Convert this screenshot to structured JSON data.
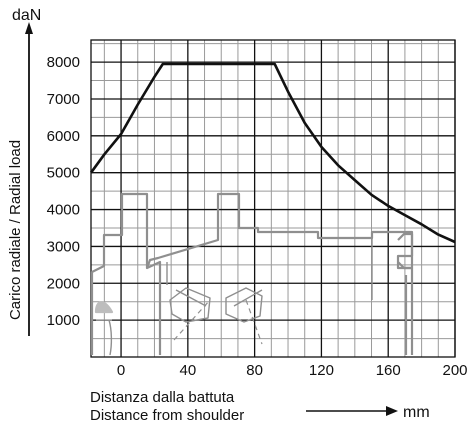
{
  "chart_data": {
    "type": "line",
    "title": "",
    "ylabel": "Carico radiale / Radial load",
    "y_unit": "daN",
    "xlabel_it": "Distanza dalla battuta",
    "xlabel_en": "Distance from shoulder",
    "x_unit": "mm",
    "xlim": [
      -18,
      200
    ],
    "ylim": [
      0,
      8600
    ],
    "x_ticks": [
      0,
      40,
      80,
      120,
      160,
      200
    ],
    "y_ticks": [
      1000,
      2000,
      3000,
      4000,
      5000,
      6000,
      7000,
      8000
    ],
    "grid": true,
    "series": [
      {
        "x": [
          -18,
          -10,
          0,
          10,
          20,
          25,
          92,
          100,
          110,
          120,
          130,
          140,
          150,
          160,
          170,
          180,
          190,
          200
        ],
        "y": [
          5000,
          5500,
          6050,
          6850,
          7600,
          7950,
          7950,
          7200,
          6350,
          5700,
          5200,
          4800,
          4400,
          4100,
          3850,
          3600,
          3320,
          3120
        ]
      }
    ],
    "colors": {
      "line": "#111111",
      "grid_major": "#111111",
      "grid_minor": "#9a9a9a",
      "drawing": "#8f8f8f"
    }
  }
}
